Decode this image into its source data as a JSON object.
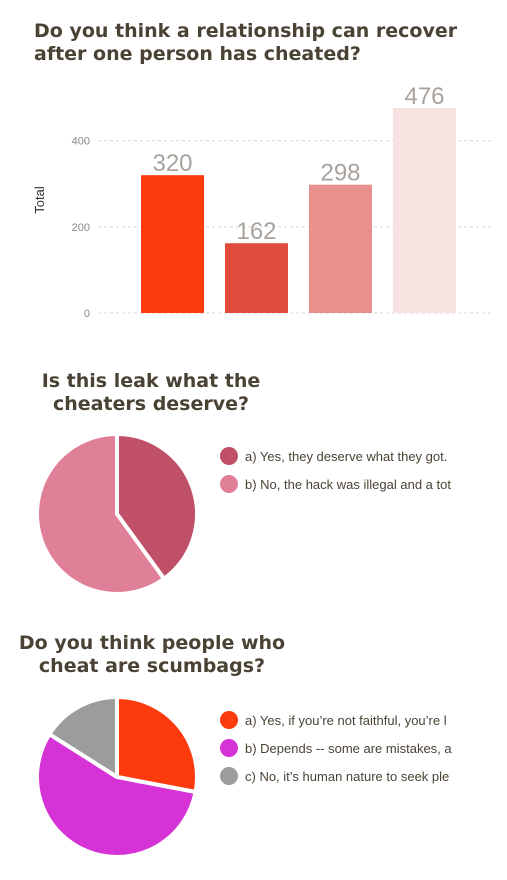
{
  "chart_data": [
    {
      "type": "bar",
      "title": "Do you think a relationship can recover after one person has cheated?",
      "ylabel": "Total",
      "ylim": [
        0,
        476
      ],
      "yticks": [
        0,
        200,
        400
      ],
      "grid": true,
      "values": [
        320,
        162,
        298,
        476
      ],
      "colors": [
        "#fd3a0c",
        "#e04b3b",
        "#e8908c",
        "#f7e2e2"
      ]
    },
    {
      "type": "pie",
      "title": "Is this leak what the cheaters deserve?",
      "legend_position": "right",
      "slices": [
        {
          "label": "a) Yes, they deserve what they got.",
          "value": 40,
          "color": "#c05068"
        },
        {
          "label": "b) No, the hack was illegal and a tot",
          "value": 60,
          "color": "#e08098"
        }
      ]
    },
    {
      "type": "pie",
      "title": "Do you think people who cheat are scumbags?",
      "legend_position": "right",
      "slices": [
        {
          "label": "a) Yes, if you’re not faithful, you’re l",
          "value": 28,
          "color": "#fd3a0c"
        },
        {
          "label": "b) Depends -- some are mistakes, a",
          "value": 56,
          "color": "#d633d6"
        },
        {
          "label": "c) No, it’s human nature to seek ple",
          "value": 16,
          "color": "#9c9c9c"
        }
      ]
    }
  ]
}
